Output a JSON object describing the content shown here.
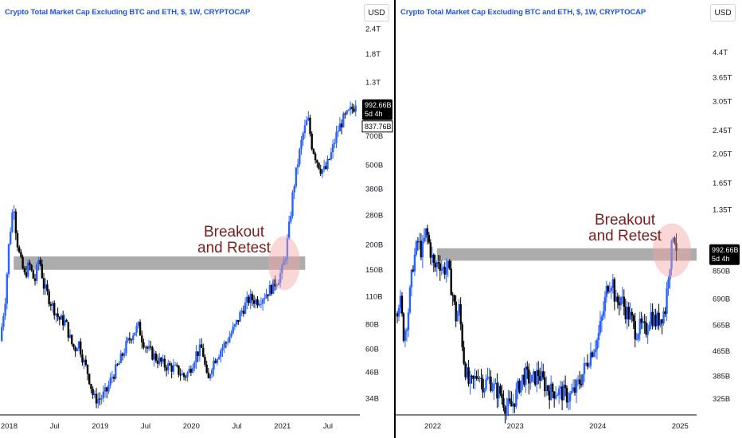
{
  "colors": {
    "up": "#2962ff",
    "down": "#000000",
    "zone": "#9e9e9e",
    "circle": "#f4a6a6",
    "annotation": "#7a1e1e",
    "title": "#1e53e5"
  },
  "chart_data": [
    {
      "type": "candlestick",
      "title": "Crypto Total Market Cap Excluding BTC and ETH, $, 1W, CRYPTOCAP",
      "currency_button": "USD",
      "scale": "log",
      "y_ticks": [
        "2.4T",
        "1.8T",
        "1.3T",
        "700B",
        "500B",
        "380B",
        "280B",
        "200B",
        "150B",
        "110B",
        "80B",
        "60B",
        "46B",
        "34B"
      ],
      "y_tick_values": [
        2400,
        1800,
        1300,
        700,
        500,
        380,
        280,
        200,
        150,
        110,
        80,
        60,
        46,
        34
      ],
      "x_ticks": [
        "2018",
        "Jul",
        "2019",
        "Jul",
        "2020",
        "Jul",
        "2021",
        "Jul"
      ],
      "x_tick_values": [
        2018.0,
        2018.5,
        2019.0,
        2019.5,
        2020.0,
        2020.5,
        2021.0,
        2021.5
      ],
      "xlim": [
        2017.9,
        2021.85
      ],
      "ylim": [
        29,
        2500
      ],
      "last_price": "992.66B",
      "countdown": "5d 4h",
      "secondary_price": "837.76B",
      "annotation": [
        "Breakout",
        "and Retest"
      ],
      "zone": {
        "low": 150,
        "high": 175,
        "x_from": 2018.05,
        "x_to": 2021.25
      },
      "series_path": [
        [
          2017.9,
          66
        ],
        [
          2017.96,
          110
        ],
        [
          2018.0,
          210
        ],
        [
          2018.05,
          330
        ],
        [
          2018.08,
          220
        ],
        [
          2018.12,
          170
        ],
        [
          2018.17,
          140
        ],
        [
          2018.22,
          160
        ],
        [
          2018.28,
          130
        ],
        [
          2018.33,
          175
        ],
        [
          2018.38,
          125
        ],
        [
          2018.45,
          105
        ],
        [
          2018.55,
          85
        ],
        [
          2018.62,
          82
        ],
        [
          2018.68,
          65
        ],
        [
          2018.72,
          60
        ],
        [
          2018.76,
          66
        ],
        [
          2018.82,
          52
        ],
        [
          2018.87,
          45
        ],
        [
          2018.93,
          34
        ],
        [
          2019.0,
          34
        ],
        [
          2019.07,
          37
        ],
        [
          2019.13,
          44
        ],
        [
          2019.2,
          50
        ],
        [
          2019.28,
          62
        ],
        [
          2019.35,
          72
        ],
        [
          2019.42,
          78
        ],
        [
          2019.46,
          68
        ],
        [
          2019.52,
          60
        ],
        [
          2019.6,
          55
        ],
        [
          2019.7,
          50
        ],
        [
          2019.78,
          49
        ],
        [
          2019.85,
          47
        ],
        [
          2019.92,
          44
        ],
        [
          2019.97,
          46
        ],
        [
          2020.05,
          57
        ],
        [
          2020.12,
          61
        ],
        [
          2020.18,
          40
        ],
        [
          2020.22,
          50
        ],
        [
          2020.3,
          58
        ],
        [
          2020.38,
          65
        ],
        [
          2020.48,
          78
        ],
        [
          2020.56,
          95
        ],
        [
          2020.64,
          108
        ],
        [
          2020.72,
          105
        ],
        [
          2020.8,
          112
        ],
        [
          2020.88,
          122
        ],
        [
          2020.95,
          135
        ],
        [
          2021.0,
          150
        ],
        [
          2021.04,
          185
        ],
        [
          2021.08,
          260
        ],
        [
          2021.12,
          380
        ],
        [
          2021.17,
          520
        ],
        [
          2021.22,
          700
        ],
        [
          2021.28,
          860
        ],
        [
          2021.32,
          640
        ],
        [
          2021.37,
          540
        ],
        [
          2021.42,
          480
        ],
        [
          2021.47,
          470
        ],
        [
          2021.53,
          560
        ],
        [
          2021.6,
          730
        ],
        [
          2021.66,
          840
        ],
        [
          2021.72,
          900
        ],
        [
          2021.78,
          980
        ],
        [
          2021.82,
          992
        ]
      ]
    },
    {
      "type": "candlestick",
      "title": "Crypto Total Market Cap Excluding BTC and ETH, $, 1W, CRYPTOCAP",
      "currency_button": "USD",
      "scale": "log",
      "y_ticks": [
        "4.4T",
        "3.65T",
        "3.05T",
        "2.45T",
        "2.05T",
        "1.65T",
        "1.35T",
        "850B",
        "690B",
        "565B",
        "465B",
        "385B",
        "325B"
      ],
      "y_tick_values": [
        4400,
        3650,
        3050,
        2450,
        2050,
        1650,
        1350,
        850,
        690,
        565,
        465,
        385,
        325
      ],
      "x_ticks": [
        "2022",
        "2023",
        "2024",
        "2025"
      ],
      "x_tick_values": [
        2022.0,
        2023.0,
        2024.0,
        2025.0
      ],
      "xlim": [
        2021.55,
        2025.2
      ],
      "ylim": [
        290,
        5400
      ],
      "last_price": "992.66B",
      "countdown": "5d 4h",
      "annotation": [
        "Breakout",
        "and Retest"
      ],
      "zone": {
        "low": 920,
        "high": 1010,
        "x_from": 2022.05,
        "x_to": 2025.2
      },
      "series_path": [
        [
          2021.55,
          620
        ],
        [
          2021.6,
          700
        ],
        [
          2021.65,
          520
        ],
        [
          2021.7,
          620
        ],
        [
          2021.76,
          900
        ],
        [
          2021.82,
          1060
        ],
        [
          2021.87,
          980
        ],
        [
          2021.92,
          1150
        ],
        [
          2021.97,
          1000
        ],
        [
          2022.02,
          860
        ],
        [
          2022.07,
          930
        ],
        [
          2022.12,
          860
        ],
        [
          2022.18,
          880
        ],
        [
          2022.24,
          720
        ],
        [
          2022.28,
          600
        ],
        [
          2022.32,
          640
        ],
        [
          2022.38,
          430
        ],
        [
          2022.44,
          360
        ],
        [
          2022.5,
          370
        ],
        [
          2022.55,
          400
        ],
        [
          2022.62,
          360
        ],
        [
          2022.68,
          380
        ],
        [
          2022.75,
          350
        ],
        [
          2022.82,
          340
        ],
        [
          2022.88,
          310
        ],
        [
          2022.95,
          305
        ],
        [
          2023.0,
          330
        ],
        [
          2023.06,
          370
        ],
        [
          2023.12,
          390
        ],
        [
          2023.2,
          370
        ],
        [
          2023.28,
          395
        ],
        [
          2023.35,
          365
        ],
        [
          2023.42,
          345
        ],
        [
          2023.5,
          345
        ],
        [
          2023.58,
          340
        ],
        [
          2023.65,
          330
        ],
        [
          2023.72,
          345
        ],
        [
          2023.8,
          380
        ],
        [
          2023.87,
          430
        ],
        [
          2023.93,
          470
        ],
        [
          2024.0,
          510
        ],
        [
          2024.06,
          610
        ],
        [
          2024.12,
          770
        ],
        [
          2024.18,
          800
        ],
        [
          2024.22,
          660
        ],
        [
          2024.28,
          700
        ],
        [
          2024.33,
          640
        ],
        [
          2024.4,
          600
        ],
        [
          2024.46,
          540
        ],
        [
          2024.52,
          560
        ],
        [
          2024.58,
          540
        ],
        [
          2024.64,
          620
        ],
        [
          2024.7,
          580
        ],
        [
          2024.76,
          600
        ],
        [
          2024.82,
          640
        ],
        [
          2024.86,
          860
        ],
        [
          2024.89,
          960
        ],
        [
          2024.92,
          1180
        ],
        [
          2024.94,
          1080
        ],
        [
          2024.96,
          992
        ]
      ]
    }
  ]
}
